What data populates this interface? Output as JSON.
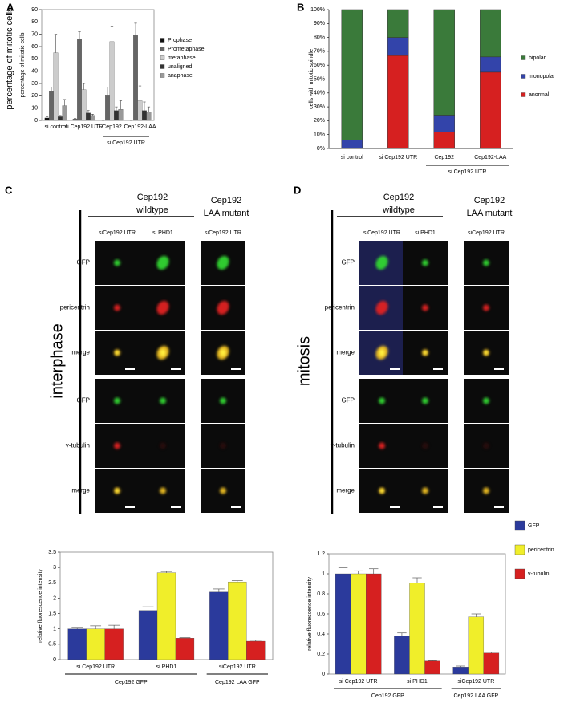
{
  "chart_data": [
    {
      "type": "bar",
      "panel": "A",
      "ylabel": "percentage of mitotic cells",
      "ylabel_outer": "percentage of mitotic cells",
      "categories": [
        "si control",
        "si Cep192 UTR",
        "Cep192",
        "Cep192-LAA"
      ],
      "group_labels": [
        "si Cep192 UTR"
      ],
      "ylim": [
        0,
        90
      ],
      "yticks": [
        0,
        10,
        20,
        30,
        40,
        50,
        60,
        70,
        80,
        90
      ],
      "series": [
        {
          "name": "Prophase",
          "color": "#111111",
          "values": [
            2,
            1,
            0,
            0
          ],
          "errors": [
            1,
            0.5,
            0,
            0
          ]
        },
        {
          "name": "Prometaphase",
          "color": "#666666",
          "values": [
            24,
            66,
            20,
            69
          ],
          "errors": [
            3,
            6,
            7,
            10
          ]
        },
        {
          "name": "metaphase",
          "color": "#cccccc",
          "values": [
            55,
            25,
            64,
            16
          ],
          "errors": [
            15,
            5,
            12,
            12
          ]
        },
        {
          "name": "unaligned",
          "color": "#333333",
          "values": [
            3,
            6,
            8,
            8
          ],
          "errors": [
            1,
            2,
            3,
            7
          ]
        },
        {
          "name": "anaphase",
          "color": "#999999",
          "values": [
            12,
            4,
            9,
            7
          ],
          "errors": [
            5,
            1,
            7,
            4
          ]
        }
      ]
    },
    {
      "type": "stacked_bar",
      "panel": "B",
      "ylabel": "cells with mitotic spindle",
      "categories": [
        "si control",
        "si Cep192 UTR",
        "Cep192",
        "Cep192-LAA"
      ],
      "group_labels": [
        "si Cep192 UTR"
      ],
      "ylim": [
        0,
        100
      ],
      "yticks": [
        {
          "value": 0,
          "label": "0%"
        },
        {
          "value": 10,
          "label": "10%"
        },
        {
          "value": 20,
          "label": "20%"
        },
        {
          "value": 30,
          "label": "30%"
        },
        {
          "value": 40,
          "label": "40%"
        },
        {
          "value": 50,
          "label": "50%"
        },
        {
          "value": 60,
          "label": "60%"
        },
        {
          "value": 70,
          "label": "70%"
        },
        {
          "value": 80,
          "label": "80%"
        },
        {
          "value": 90,
          "label": "90%"
        },
        {
          "value": 100,
          "label": "100%"
        }
      ],
      "series": [
        {
          "name": "anormal",
          "color": "#d62020",
          "values": [
            0,
            67,
            12,
            55
          ]
        },
        {
          "name": "monopolar",
          "color": "#3344aa",
          "values": [
            6,
            13,
            12,
            11
          ]
        },
        {
          "name": "bipolar",
          "color": "#3a7a3a",
          "values": [
            94,
            20,
            76,
            34
          ]
        }
      ]
    },
    {
      "type": "bar",
      "ylabel": "relative fluorescence intensity",
      "categories": [
        "si Cep192 UTR",
        "si PHD1",
        "siCep192 UTR"
      ],
      "group_labels": [
        "Cep192 GFP",
        "Cep192 LAA GFP"
      ],
      "ylim": [
        0,
        3.5
      ],
      "yticks": [
        0,
        0.5,
        1,
        1.5,
        2,
        2.5,
        3,
        3.5
      ],
      "series": [
        {
          "name": "GFP",
          "color": "#2b3a9c",
          "values": [
            1,
            1.6,
            2.2
          ],
          "errors": [
            0.05,
            0.12,
            0.1
          ]
        },
        {
          "name": "pericentrin",
          "color": "#f0ee2a",
          "values": [
            1,
            2.83,
            2.53
          ],
          "errors": [
            0.1,
            0.04,
            0.04
          ]
        },
        {
          "name": "γ-tubulin",
          "color": "#d62020",
          "values": [
            1,
            0.7,
            0.6
          ],
          "errors": [
            0.12,
            0.02,
            0.03
          ]
        }
      ]
    },
    {
      "type": "bar",
      "ylabel": "relative fluorescence intensity",
      "categories": [
        "si Cep192 UTR",
        "si PHD1",
        "siCep192 UTR"
      ],
      "group_labels": [
        "Cep192 GFP",
        "Cep192 LAA GFP"
      ],
      "ylim": [
        0,
        1.2
      ],
      "yticks": [
        0,
        0.2,
        0.4,
        0.6,
        0.8,
        1,
        1.2
      ],
      "series": [
        {
          "name": "GFP",
          "color": "#2b3a9c",
          "values": [
            1,
            0.38,
            0.07
          ],
          "errors": [
            0.06,
            0.03,
            0.01
          ]
        },
        {
          "name": "pericentrin",
          "color": "#f0ee2a",
          "values": [
            1,
            0.91,
            0.57
          ],
          "errors": [
            0.03,
            0.05,
            0.03
          ]
        },
        {
          "name": "γ-tubulin",
          "color": "#d62020",
          "values": [
            1,
            0.13,
            0.21
          ],
          "errors": [
            0.05,
            0.005,
            0.01
          ]
        }
      ]
    }
  ],
  "panels": [
    {
      "label": "C",
      "groups": [
        [
          "Cep192",
          "wildtype"
        ],
        [
          "Cep192",
          "LAA mutant"
        ]
      ],
      "columns": [
        "siCep192 UTR",
        "si PHD1",
        "siCep192 UTR"
      ],
      "rows": [
        "GFP",
        "pericentrin",
        "merge",
        "GFP",
        "γ-tubulin",
        "merge"
      ],
      "phase": "interphase"
    },
    {
      "label": "D",
      "groups": [
        [
          "Cep192",
          "wildtype"
        ],
        [
          "Cep192",
          "LAA mutant"
        ]
      ],
      "columns": [
        "siCep192 UTR",
        "si PHD1",
        "siCep192 UTR"
      ],
      "rows": [
        "GFP",
        "pericentrin",
        "merge",
        "GFP",
        "γ-tubulin",
        "merge"
      ],
      "phase": "mitosis"
    }
  ]
}
